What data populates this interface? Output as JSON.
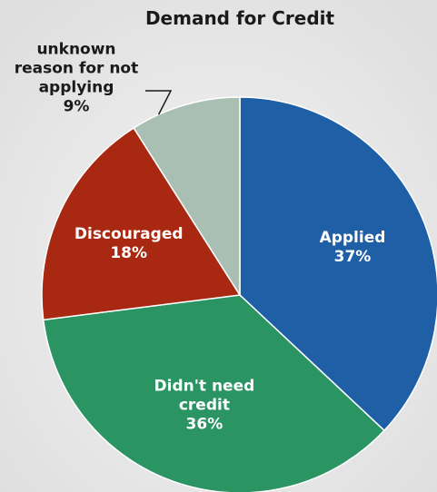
{
  "chart_data": {
    "type": "pie",
    "title": "Demand for Credit",
    "start_angle_deg": 0,
    "direction": "clockwise",
    "slices": [
      {
        "label_lines": [
          "Applied"
        ],
        "pct_label": "37%",
        "value": 37,
        "color": "#1f5fa6",
        "label_style": "inside"
      },
      {
        "label_lines": [
          "Didn't need",
          "credit"
        ],
        "pct_label": "36%",
        "value": 36,
        "color": "#2a9463",
        "label_style": "inside"
      },
      {
        "label_lines": [
          "Discouraged"
        ],
        "pct_label": "18%",
        "value": 18,
        "color": "#a82812",
        "label_style": "inside"
      },
      {
        "label_lines": [
          "unknown",
          "reason for not",
          "applying"
        ],
        "pct_label": "9%",
        "value": 9,
        "color": "#a9bfb3",
        "label_style": "outside"
      }
    ],
    "legend": "none"
  }
}
